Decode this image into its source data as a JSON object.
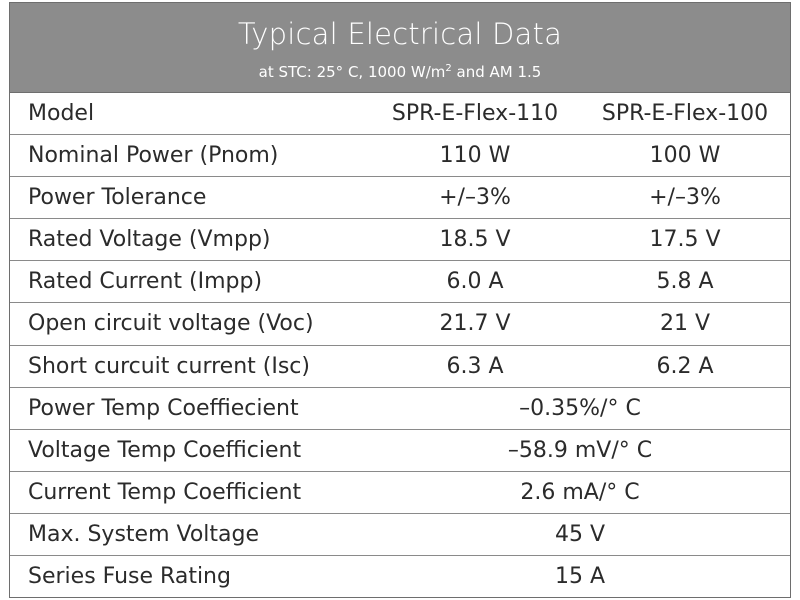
{
  "table": {
    "title": "Typical Electrical Data",
    "subtitle_main": "at STC: 25° C, 1000 W/m",
    "subtitle_sup": "2",
    "subtitle_tail": " and AM 1.5",
    "model_row": {
      "label": "Model",
      "col1": "SPR-E-Flex-110",
      "col2": "SPR-E-Flex-100"
    },
    "rows": [
      {
        "label": "Nominal Power (Pnom)",
        "col1": "110 W",
        "col2": "100 W"
      },
      {
        "label": "Power Tolerance",
        "col1": "+/–3%",
        "col2": "+/–3%"
      },
      {
        "label": "Rated Voltage (Vmpp)",
        "col1": "18.5 V",
        "col2": "17.5 V"
      },
      {
        "label": "Rated Current (Impp)",
        "col1": "6.0 A",
        "col2": "5.8 A"
      },
      {
        "label": "Open circuit voltage (Voc)",
        "col1": "21.7 V",
        "col2": "21 V"
      },
      {
        "label": "Short curcuit current (Isc)",
        "col1": "6.3 A",
        "col2": "6.2 A"
      }
    ],
    "merged_rows": [
      {
        "label": "Power Temp Coeffiecient",
        "value": "–0.35%/° C"
      },
      {
        "label": "Voltage Temp Coefficient",
        "value": "–58.9 mV/° C"
      },
      {
        "label": "Current Temp Coefficient",
        "value": "2.6 mA/° C"
      },
      {
        "label": "Max. System Voltage",
        "value": "45 V"
      },
      {
        "label": "Series Fuse Rating",
        "value": "15 A"
      }
    ],
    "colors": {
      "header_bg": "#8c8c8c",
      "header_text": "#ffffff",
      "border": "#6e6e6e",
      "text": "#2b2b2b"
    }
  }
}
